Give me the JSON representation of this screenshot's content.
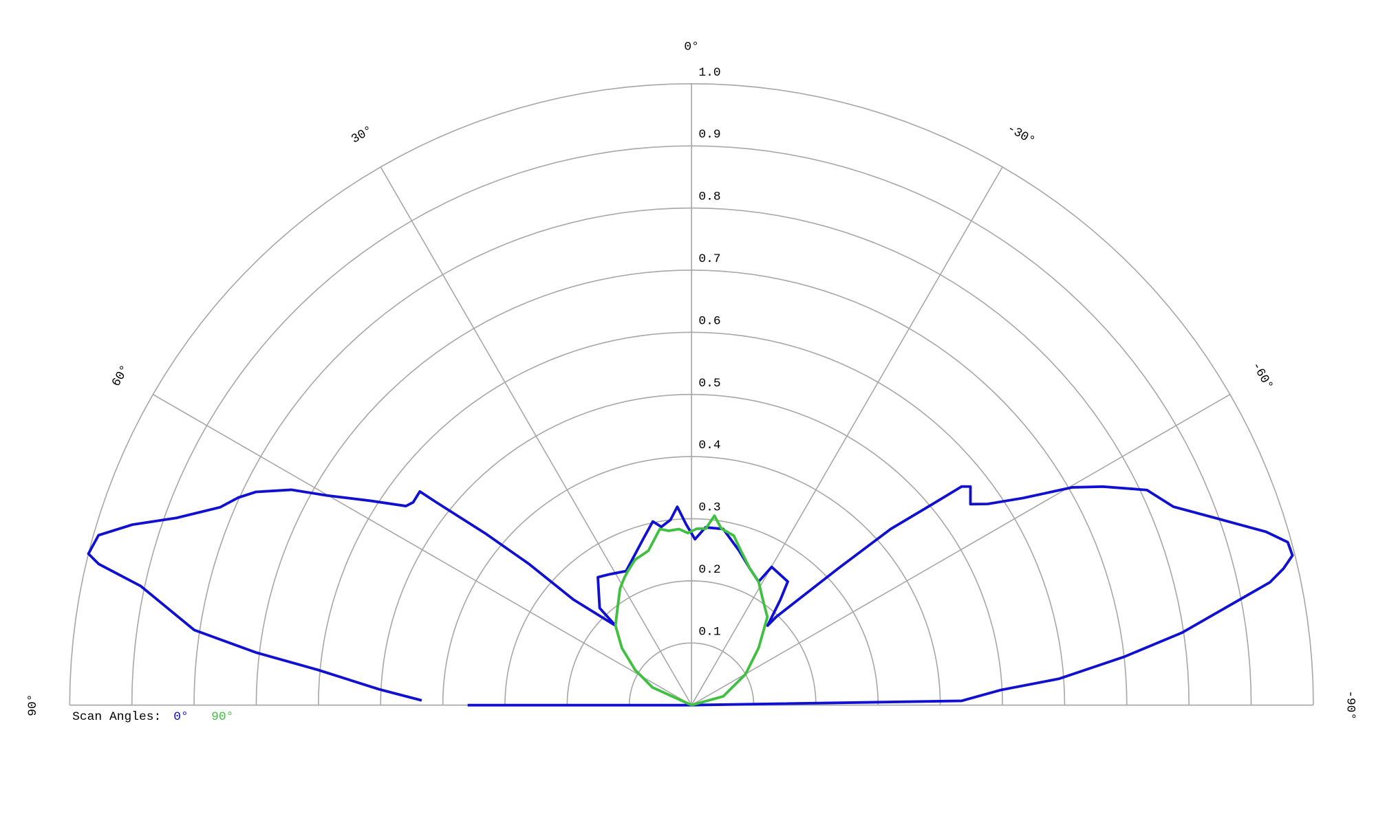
{
  "chart_data": {
    "type": "polar",
    "theta_zero_location": "N",
    "theta_direction": 1,
    "rlim": [
      0,
      1
    ],
    "rticks": [
      0.1,
      0.2,
      0.3,
      0.4,
      0.5,
      0.6,
      0.7,
      0.8,
      0.9,
      {
        "value": 1,
        "label": "1.0"
      }
    ],
    "thetaticks": [
      {
        "value": 90,
        "label": "90°"
      },
      {
        "value": 60,
        "label": "60°"
      },
      {
        "value": 30,
        "label": "30°"
      },
      {
        "value": 0,
        "label": "0°"
      },
      {
        "value": -30,
        "label": "-30°"
      },
      {
        "value": -60,
        "label": "-60°"
      },
      {
        "value": -90,
        "label": "-90°"
      }
    ],
    "grid": true,
    "legend_title": "Scan Angles:",
    "series": [
      {
        "name": "0°",
        "color": "#1010d0",
        "theta": [
          89,
          87.1,
          84.6,
          83.1,
          81.4,
          77.8,
          76.6,
          75.9,
          74.0,
          72.1,
          70.0,
          67.2,
          65.4,
          63.9,
          61.7,
          60.1,
          57.5,
          55.1,
          53.9,
          51.8,
          51.5,
          50.2,
          49.0,
          48.2,
          43.7,
          43.4,
          36.2,
          32.4,
          26.0,
          15.9,
          11.9,
          9.6,
          6.5,
          4.1,
          1.7,
          -1.2,
          -4.5,
          -10.2,
          -17.1,
          -23.1,
          -28.5,
          -30.1,
          -37.9,
          -40.1,
          -43.7,
          -43.8,
          -47.0,
          -48.5,
          -50.1,
          -51.0,
          -51.9,
          -54.2,
          -55.8,
          -58.0,
          -60.2,
          -62.0,
          -64.7,
          -67.6,
          -70.7,
          -73.2,
          -74.7,
          -76.0,
          -77.0,
          -78.0,
          -81.6,
          -83.6,
          -85.9,
          -87.2,
          -89.1,
          -90,
          90,
          90
        ],
        "r": [
          0.434,
          0.503,
          0.604,
          0.706,
          0.809,
          0.906,
          0.98,
          1.0,
          0.992,
          0.945,
          0.881,
          0.822,
          0.802,
          0.78,
          0.731,
          0.677,
          0.612,
          0.56,
          0.554,
          0.556,
          0.524,
          0.432,
          0.346,
          0.255,
          0.177,
          0.215,
          0.255,
          0.249,
          0.24,
          0.28,
          0.302,
          0.291,
          0.3,
          0.32,
          0.291,
          0.267,
          0.287,
          0.288,
          0.26,
          0.239,
          0.226,
          0.257,
          0.252,
          0.222,
          0.177,
          0.197,
          0.322,
          0.428,
          0.502,
          0.559,
          0.57,
          0.553,
          0.576,
          0.629,
          0.705,
          0.749,
          0.81,
          0.838,
          0.903,
          0.965,
          0.994,
          0.996,
          0.977,
          0.951,
          0.797,
          0.701,
          0.592,
          0.498,
          0.434,
          0,
          0,
          0.36
        ]
      },
      {
        "name": "90°",
        "color": "#40c040",
        "theta": [
          90,
          65.6,
          58.0,
          50.6,
          43.7,
          37.4,
          31.5,
          27.7,
          25.3,
          21.2,
          15.6,
          10.2,
          7.5,
          4.0,
          1.2,
          -1.7,
          -4.6,
          -6.9,
          -9.6,
          -14.0,
          -17.7,
          -23.1,
          -28.5,
          -34.0,
          -40.7,
          -49.5,
          -60.2,
          -74.5,
          -90
        ],
        "r": [
          0,
          0.069,
          0.107,
          0.145,
          0.177,
          0.196,
          0.22,
          0.232,
          0.239,
          0.251,
          0.258,
          0.288,
          0.283,
          0.284,
          0.277,
          0.284,
          0.285,
          0.307,
          0.288,
          0.281,
          0.261,
          0.239,
          0.226,
          0.205,
          0.187,
          0.142,
          0.1,
          0.053,
          0
        ]
      }
    ]
  }
}
